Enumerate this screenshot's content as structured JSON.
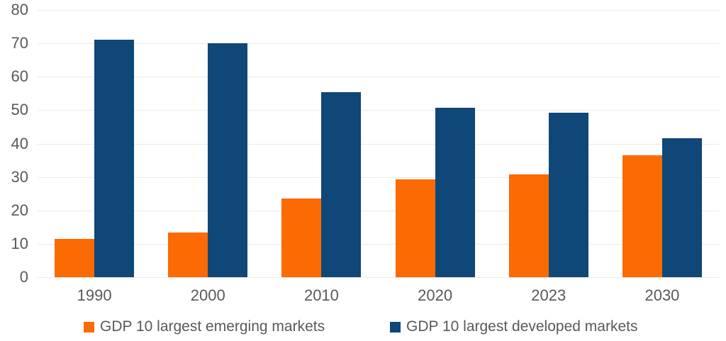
{
  "chart_data": {
    "type": "bar",
    "title": "",
    "categories": [
      "1990",
      "2000",
      "2010",
      "2020",
      "2023",
      "2030"
    ],
    "series": [
      {
        "name": "GDP 10 largest emerging markets",
        "color": "#FC6A04",
        "values": [
          11.4,
          13.3,
          23.5,
          29.3,
          30.8,
          36.5
        ]
      },
      {
        "name": "GDP 10 largest developed markets",
        "color": "#0E4778",
        "values": [
          71.1,
          70.0,
          55.3,
          50.8,
          49.3,
          41.7
        ]
      }
    ],
    "xlabel": "",
    "ylabel": "",
    "ylim": [
      0,
      80
    ],
    "yticks": [
      0,
      10,
      20,
      30,
      40,
      50,
      60,
      70,
      80
    ],
    "grid": true,
    "legend_position": "bottom"
  },
  "colors": {
    "background": "#ffffff",
    "gridline": "#ebebeb",
    "text": "#595959",
    "emerging": "#FC6A04",
    "developed": "#0E4778"
  }
}
